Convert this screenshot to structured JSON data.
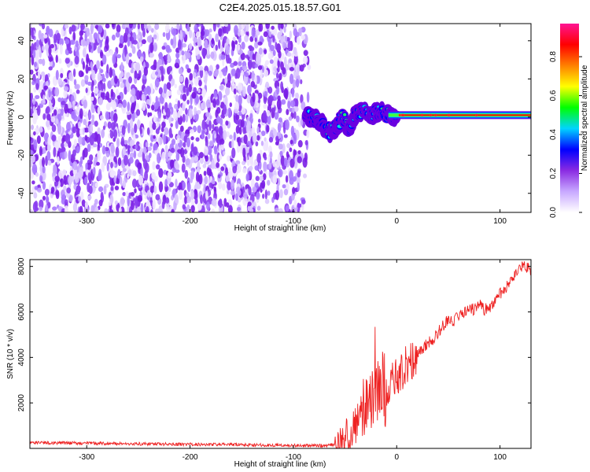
{
  "title": "C2E4.2025.015.18.57.G01",
  "chart_data": [
    {
      "type": "heatmap",
      "xlabel": "Height of straight line (km)",
      "ylabel": "Frequency (Hz)",
      "xlim": [
        -355,
        130
      ],
      "ylim": [
        -50,
        49
      ],
      "xticks": [
        -300,
        -200,
        -100,
        0,
        100
      ],
      "yticks": [
        -40,
        -20,
        0,
        20,
        40
      ],
      "grid": false,
      "noise_region": {
        "x_from": -355,
        "x_to": -82,
        "y_from": -50,
        "y_to": 49
      },
      "signal_ridge": [
        {
          "x": -88,
          "y": 1
        },
        {
          "x": -80,
          "y": -1
        },
        {
          "x": -72,
          "y": -4
        },
        {
          "x": -64,
          "y": -8
        },
        {
          "x": -58,
          "y": -5
        },
        {
          "x": -52,
          "y": 0
        },
        {
          "x": -46,
          "y": -6
        },
        {
          "x": -40,
          "y": 1
        },
        {
          "x": -32,
          "y": 3
        },
        {
          "x": -24,
          "y": 1
        },
        {
          "x": -16,
          "y": 3
        },
        {
          "x": -8,
          "y": 1
        },
        {
          "x": 0,
          "y": 1
        },
        {
          "x": 130,
          "y": 1
        }
      ],
      "steady_line": {
        "x_from": 8,
        "x_to": 130,
        "y": 1,
        "amplitude": 0.85
      },
      "colorbar": {
        "label": "Normalized spectral amplitude",
        "range": [
          0,
          0.97
        ],
        "ticks": [
          0.0,
          0.2,
          0.4,
          0.6,
          0.8
        ],
        "colors": [
          "#ffffff",
          "#c8a8ff",
          "#8a2be2",
          "#0000ff",
          "#00d4ff",
          "#00ff00",
          "#ffff00",
          "#ff8000",
          "#ff0000",
          "#ff1493"
        ]
      }
    },
    {
      "type": "line",
      "xlabel": "Height of straight line (km)",
      "ylabel": "SNR (10 * v/v)",
      "xlim": [
        -355,
        130
      ],
      "ylim": [
        0,
        8300
      ],
      "xticks": [
        -300,
        -200,
        -100,
        0,
        100
      ],
      "yticks": [
        2000,
        4000,
        6000,
        8000
      ],
      "grid": false,
      "series": [
        {
          "color": "#ee2222",
          "x": [
            -355,
            -300,
            -250,
            -200,
            -150,
            -100,
            -70,
            -55,
            -50,
            -45,
            -40,
            -35,
            -30,
            -25,
            -20,
            -15,
            -10,
            -5,
            0,
            5,
            10,
            15,
            20,
            25,
            30,
            35,
            40,
            45,
            50,
            55,
            60,
            65,
            70,
            75,
            80,
            85,
            90,
            95,
            100,
            105,
            110,
            115,
            120,
            125,
            130
          ],
          "y": [
            250,
            230,
            200,
            180,
            160,
            130,
            120,
            200,
            400,
            800,
            1200,
            1700,
            1900,
            2200,
            2400,
            2600,
            2700,
            2900,
            3100,
            3400,
            3700,
            3900,
            4200,
            4400,
            4600,
            4800,
            5100,
            5400,
            5700,
            5600,
            5800,
            6000,
            6200,
            6100,
            6400,
            6100,
            6200,
            6500,
            6800,
            7000,
            7300,
            7600,
            8000,
            8000,
            7800
          ]
        }
      ]
    }
  ]
}
